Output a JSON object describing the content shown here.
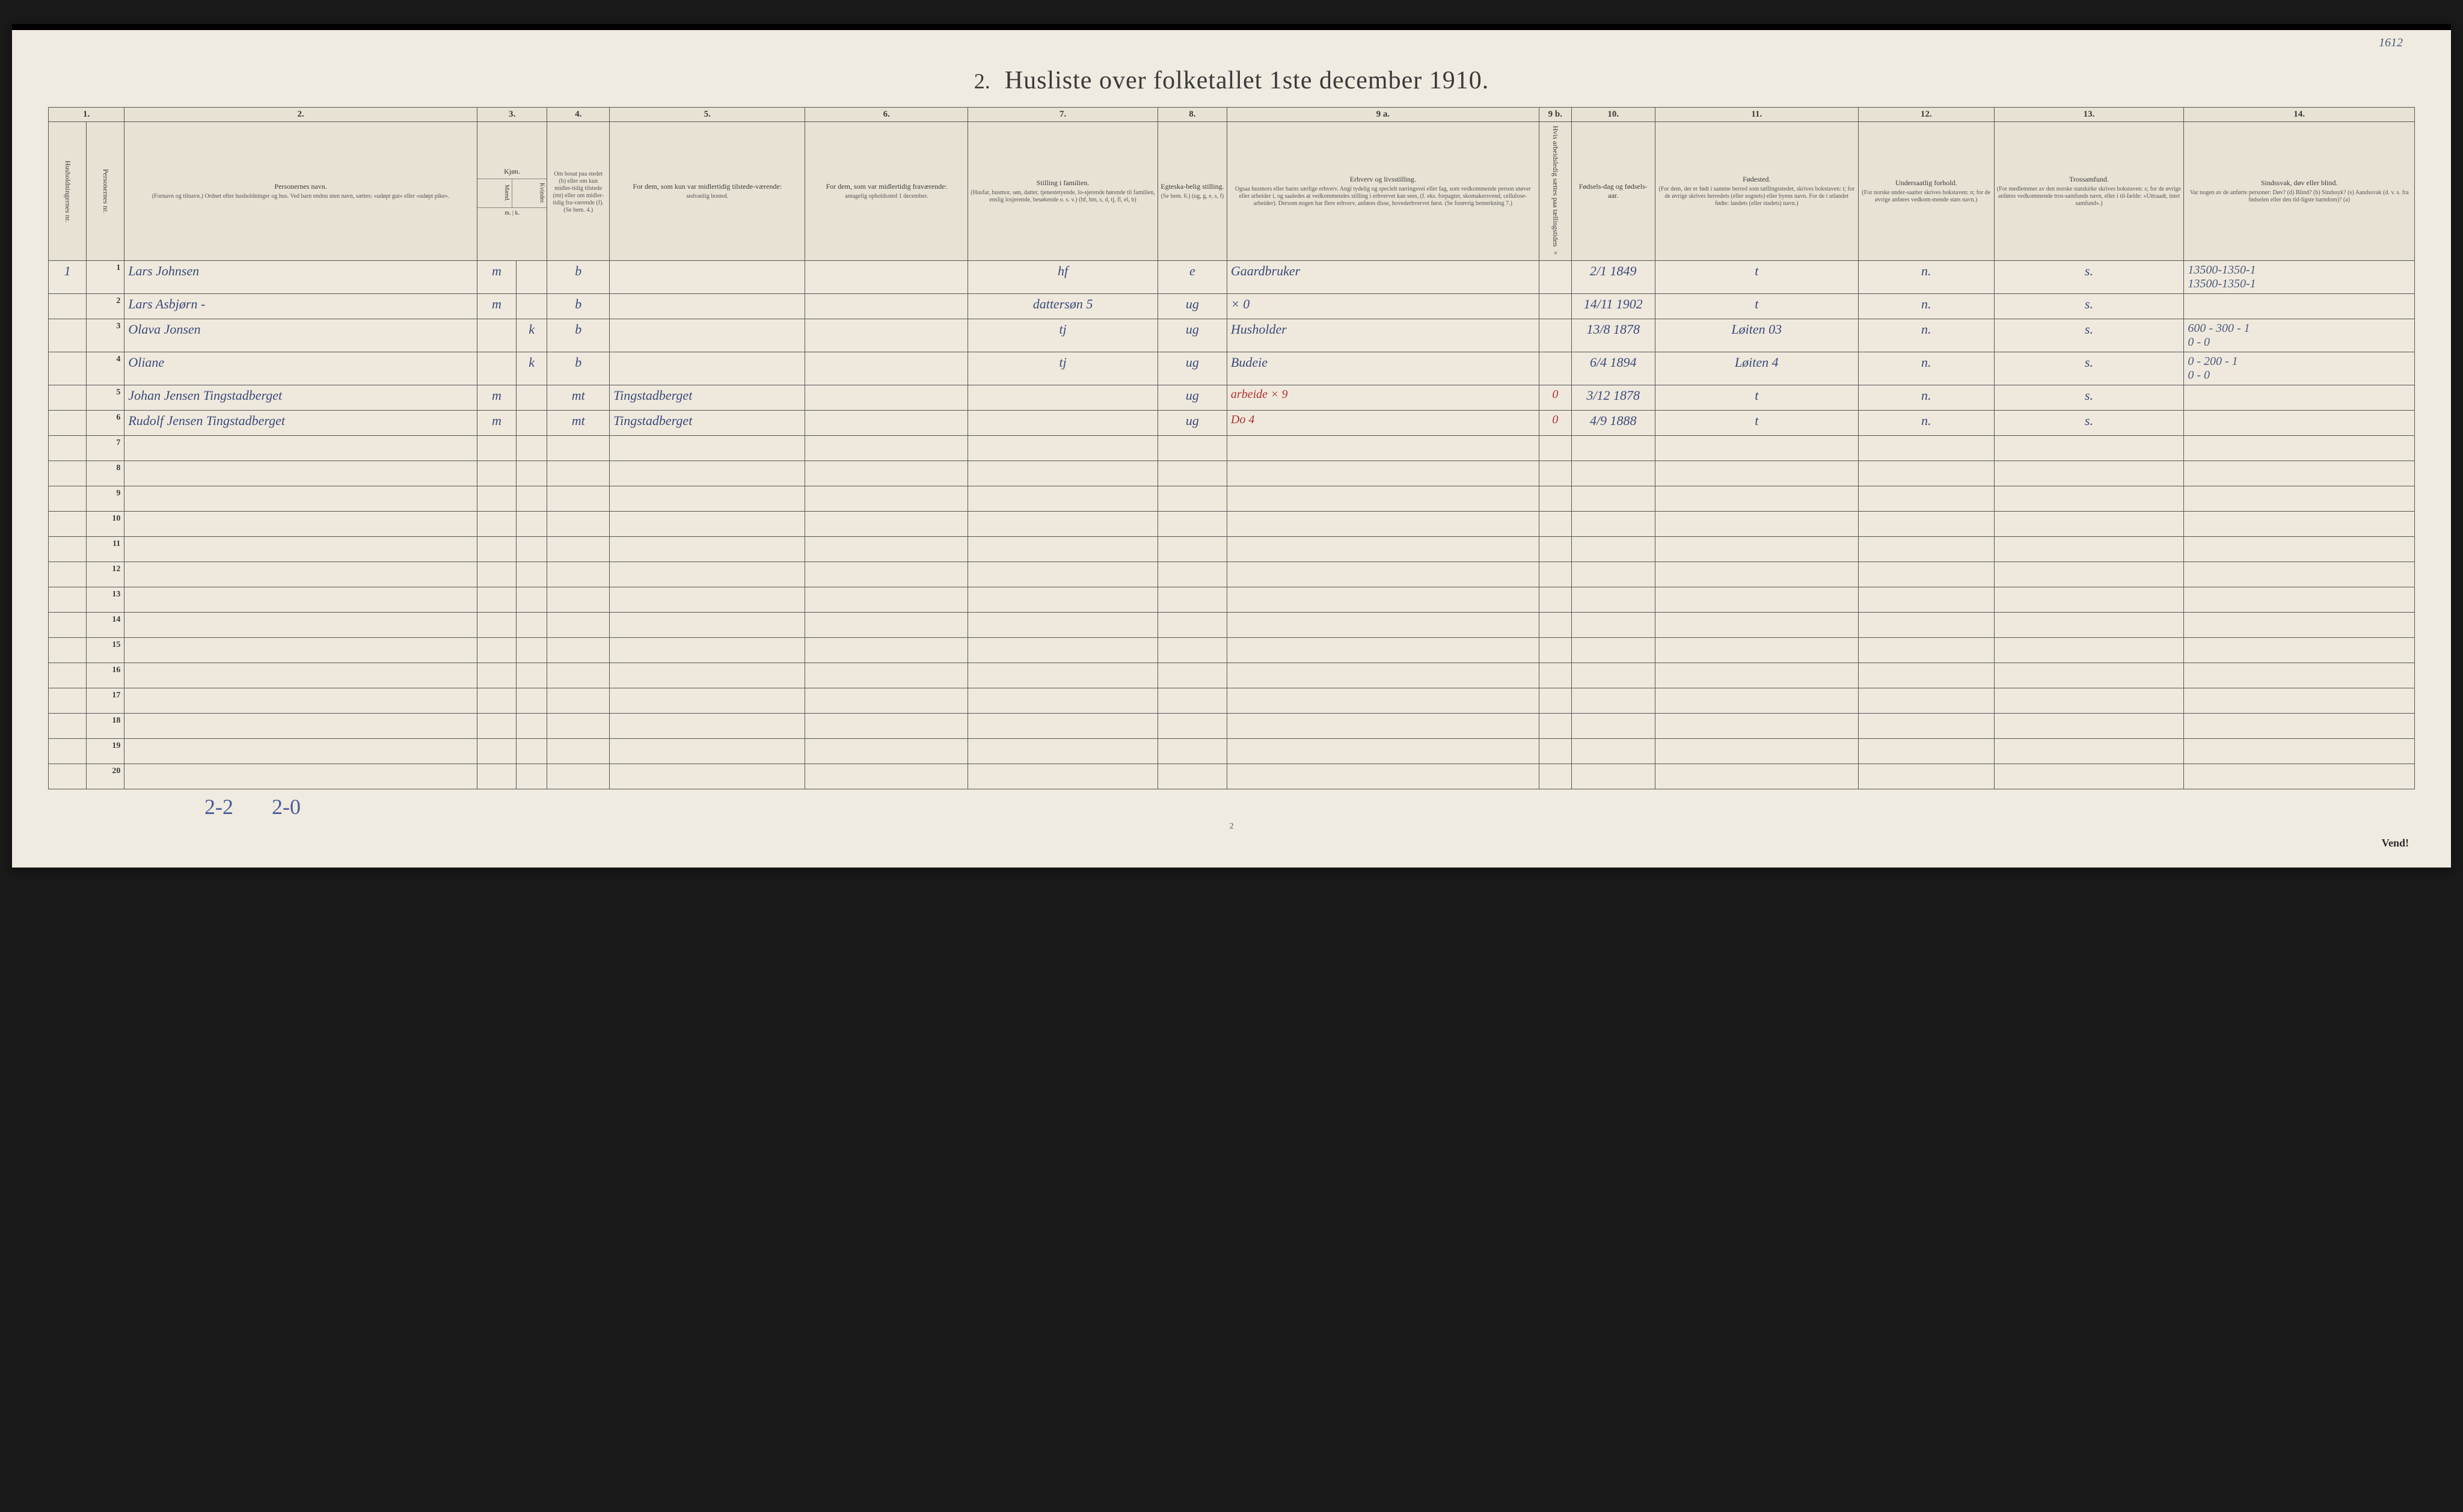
{
  "page": {
    "annotation_tr": "1612",
    "title_num": "2.",
    "title": "Husliste over folketallet 1ste december 1910.",
    "foot_num": "2",
    "vend": "Vend!",
    "footer_a": "2-2",
    "footer_b": "2-0"
  },
  "colnums": [
    "1.",
    "2.",
    "3.",
    "4.",
    "5.",
    "6.",
    "7.",
    "8.",
    "9 a.",
    "9 b.",
    "10.",
    "11.",
    "12.",
    "13.",
    "14."
  ],
  "headers": {
    "c1a": "Husholdningernes nr.",
    "c1b": "Personernes nr.",
    "c2": "Personernes navn.",
    "c2sub": "(Fornavn og tilnavn.)\nOrdnet efter husholdninger og hus.\nVed barn endnu uten navn, sættes: «udøpt gut» eller «udøpt pike».",
    "c3": "Kjøn.",
    "c3_m": "Mænd.",
    "c3_k": "Kvinder.",
    "c3_mk": "m. | k.",
    "c4": "Om bosat paa stedet (b) eller om kun midler-tidig tilstede (mt) eller om midler-tidig fra-værende (f). (Se bem. 4.)",
    "c5": "For dem, som kun var midlertidig tilstede-værende:",
    "c5sub": "sedvanlig bosted.",
    "c6": "For dem, som var midlertidig fraværende:",
    "c6sub": "antagelig opholdssted 1 december.",
    "c7": "Stilling i familien.",
    "c7sub": "(Husfar, husmor, søn, datter, tjenestetyende, lo-sjerende hørende til familien, enslig losjerende, besøkende o. s. v.)\n(hf, hm, s, d, tj, fl, el, b)",
    "c8": "Egteska-belig stilling.",
    "c8sub": "(Se bem. 6.)\n(ug, g, e, s, f)",
    "c9a": "Erhverv og livsstilling.",
    "c9asub": "Ogsaa husmors eller barns særlige erhverv.\nAngi tydelig og specielt næringsvei eller fag, som vedkommende person utøver eller arbeider i, og saaledes at vedkommendes stilling i erhvervet kan sees, (f. eks. forpagter, skomakersvend, cellulose-arbeider). Dersom nogen har flere erhverv, anføres disse, hovederhvervet først.\n(Se forøvrig bemerkning 7.)",
    "c9b": "Hvis arbeidsledig sættes paa tællingstiden ×",
    "c10": "Fødsels-dag og fødsels-aar.",
    "c11": "Fødested.",
    "c11sub": "(For dem, der er født i samme herred som tællingsstedet, skrives bokstaven: t; for de øvrige skrives herredets (eller sognets) eller byens navn. For de i utlandet fødte: landets (eller stadets) navn.)",
    "c12": "Undersaatlig forhold.",
    "c12sub": "(For norske under-saatter skrives bokstaven: n; for de øvrige anføres vedkom-mende stats navn.)",
    "c13": "Trossamfund.",
    "c13sub": "(For medlemmer av den norske statskirke skrives bokstaven: s; for de øvrige anføres vedkommende tros-samfunds navn, eller i til-fælde: «Uttraadt, intet samfund».)",
    "c14": "Sindssvak, døv eller blind.",
    "c14sub": "Var nogen av de anførte personer:\nDøv?     (d)\nBlind?    (b)\nSindssyk? (s)\nAandssvak (d. v. s. fra fødselen eller den tid-ligste barndom)? (a)"
  },
  "rows": [
    {
      "hh": "1",
      "n": "1",
      "name": "Lars Johnsen",
      "sex": "m",
      "res": "b",
      "mt": "",
      "frav": "",
      "stilling": "hf",
      "egt": "e",
      "erhverv": "Gaardbruker",
      "x": "",
      "fod": "2/1 1849",
      "sted": "t",
      "under": "n.",
      "tros": "s.",
      "sind": "13500-1350-1\n13500-1350-1"
    },
    {
      "hh": "",
      "n": "2",
      "name": "Lars Asbjørn  -",
      "sex": "m",
      "res": "b",
      "mt": "",
      "frav": "",
      "stilling": "dattersøn   5",
      "egt": "ug",
      "erhverv": "× 0",
      "x": "",
      "fod": "14/11 1902",
      "sted": "t",
      "under": "n.",
      "tros": "s.",
      "sind": ""
    },
    {
      "hh": "",
      "n": "3",
      "name": "Olava Jonsen",
      "sex": "k",
      "res": "b",
      "mt": "",
      "frav": "",
      "stilling": "tj",
      "egt": "ug",
      "erhverv": "Husholder",
      "x": "",
      "fod": "13/8 1878",
      "sted": "Løiten 03",
      "under": "n.",
      "tros": "s.",
      "sind": "600 - 300 - 1\n0 - 0"
    },
    {
      "hh": "",
      "n": "4",
      "name": "Oliane",
      "sex": "k",
      "res": "b",
      "mt": "",
      "frav": "",
      "stilling": "tj",
      "egt": "ug",
      "erhverv": "Budeie",
      "x": "",
      "fod": "6/4 1894",
      "sted": "Løiten 4",
      "under": "n.",
      "tros": "s.",
      "sind": "0 - 200 - 1\n0 - 0"
    },
    {
      "hh": "",
      "n": "5",
      "name": "Johan Jensen Tingstadberget",
      "sex": "m",
      "res": "mt",
      "mt": "Tingstadberget",
      "frav": "",
      "stilling": "",
      "egt": "ug",
      "erhverv": "arbeide   × 9",
      "erhverv_red": true,
      "x": "0",
      "fod": "3/12 1878",
      "sted": "t",
      "under": "n.",
      "tros": "s.",
      "sind": ""
    },
    {
      "hh": "",
      "n": "6",
      "name": "Rudolf Jensen Tingstadberget",
      "sex": "m",
      "res": "mt",
      "mt": "Tingstadberget",
      "frav": "",
      "stilling": "",
      "egt": "ug",
      "erhverv": "Do        4",
      "erhverv_red": true,
      "x": "0",
      "fod": "4/9 1888",
      "sted": "t",
      "under": "n.",
      "tros": "s.",
      "sind": ""
    },
    {
      "hh": "",
      "n": "7"
    },
    {
      "hh": "",
      "n": "8"
    },
    {
      "hh": "",
      "n": "9"
    },
    {
      "hh": "",
      "n": "10"
    },
    {
      "hh": "",
      "n": "11"
    },
    {
      "hh": "",
      "n": "12"
    },
    {
      "hh": "",
      "n": "13"
    },
    {
      "hh": "",
      "n": "14"
    },
    {
      "hh": "",
      "n": "15"
    },
    {
      "hh": "",
      "n": "16"
    },
    {
      "hh": "",
      "n": "17"
    },
    {
      "hh": "",
      "n": "18"
    },
    {
      "hh": "",
      "n": "19"
    },
    {
      "hh": "",
      "n": "20"
    }
  ]
}
